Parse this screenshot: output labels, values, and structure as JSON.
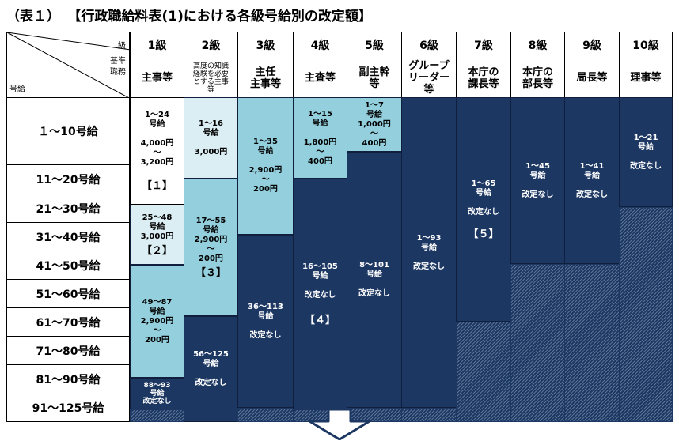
{
  "title": {
    "table_no": "（表１）",
    "main": "【行政職給料表(1)における各級号給別の改定額】"
  },
  "corner": {
    "grade_label": "級",
    "role_label": "基準\n職務",
    "step_label": "号給"
  },
  "grades": [
    {
      "grade": "1級",
      "role": "主事等"
    },
    {
      "grade": "2級",
      "role": "高度の知識\n経験を必要\nとする主事\n等"
    },
    {
      "grade": "3級",
      "role": "主任\n主事等"
    },
    {
      "grade": "4級",
      "role": "主査等"
    },
    {
      "grade": "5級",
      "role": "副主幹\n等"
    },
    {
      "grade": "6級",
      "role": "グループ\nリーダー\n等"
    },
    {
      "grade": "7級",
      "role": "本庁の\n課長等"
    },
    {
      "grade": "8級",
      "role": "本庁の\n部長等"
    },
    {
      "grade": "9級",
      "role": "局長等"
    },
    {
      "grade": "10級",
      "role": "理事等"
    }
  ],
  "rows": [
    "１～10号給",
    "11～20号給",
    "21～30号給",
    "31～40号給",
    "41～50号給",
    "51～60号給",
    "61～70号給",
    "71～80号給",
    "81～90号給",
    "91～125号給"
  ],
  "blocks": {
    "g1a": "1～24\n号給\n\n4,000円\n～\n3,200円",
    "g1a_tag": "【１】",
    "g1b": "25～48\n号給\n3,000円",
    "g1b_tag": "【２】",
    "g1c": "49～87\n号給\n2,900円\n～\n200円",
    "g1d": "88～93\n号給\n改定なし",
    "g2a": "1～16\n号給\n\n3,000円",
    "g2b": "17～55\n号給\n2,900円\n～\n200円",
    "g2b_tag": "【３】",
    "g2c": "56～125\n号給\n\n改定なし",
    "g3a": "1～35\n号給\n\n2,900円\n～\n200円",
    "g3b": "36～113\n号給\n\n改定なし",
    "g4a": "1～15\n号給\n\n1,800円\n～\n400円",
    "g4b": "16～105\n号給\n\n改定なし",
    "g4b_tag": "【４】",
    "g5a": "1～7\n号給\n1,000円\n～\n400円",
    "g5b": "8～101\n号給\n\n改定なし",
    "g6": "1～93\n号給\n\n改定なし",
    "g7": "1～65\n号給\n\n改定なし",
    "g7_tag": "【５】",
    "g8": "1～45\n号給\n\n改定なし",
    "g9": "1～41\n号給\n\n改定なし",
    "g10": "1～21\n号給\n\n改定なし"
  }
}
